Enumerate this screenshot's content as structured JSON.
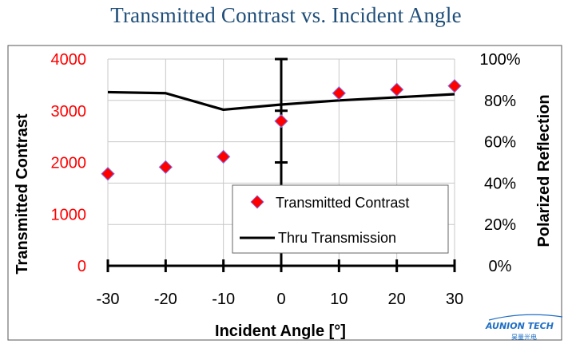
{
  "page": {
    "title": "Transmitted Contrast vs. Incident Angle",
    "logo": {
      "text": "AUNION TECH",
      "subtext": "昊量光电"
    }
  },
  "chart_data": {
    "type": "scatter",
    "title": "Transmitted Contrast vs. Incident Angle",
    "xlabel": "Incident Angle [°]",
    "ylabel_left": "Transmitted Contrast",
    "ylabel_right": "Polarized Reflection",
    "x_ticks": [
      "-30",
      "-20",
      "-10",
      "0",
      "10",
      "20",
      "30"
    ],
    "xlim": [
      -30,
      30
    ],
    "y_left_ticks": [
      "0",
      "1000",
      "2000",
      "3000",
      "4000"
    ],
    "y_left_lim": [
      0,
      4000
    ],
    "y_right_ticks": [
      "0%",
      "20%",
      "40%",
      "60%",
      "80%",
      "100%"
    ],
    "y_right_lim": [
      0,
      100
    ],
    "grid": true,
    "legend_position": "lower-right",
    "series": [
      {
        "name": "Transmitted Contrast",
        "kind": "scatter",
        "axis": "left",
        "color": "#ff0000",
        "x": [
          -30,
          -20,
          -10,
          0,
          10,
          20,
          30
        ],
        "y": [
          1780,
          1910,
          2110,
          2800,
          3340,
          3410,
          3480
        ]
      },
      {
        "name": "Thru Transmission",
        "kind": "line",
        "axis": "right",
        "color": "#000000",
        "x": [
          -30,
          -20,
          -10,
          0,
          10,
          20,
          30
        ],
        "y": [
          84,
          83.5,
          75.5,
          78,
          80,
          81.5,
          83
        ]
      }
    ]
  }
}
